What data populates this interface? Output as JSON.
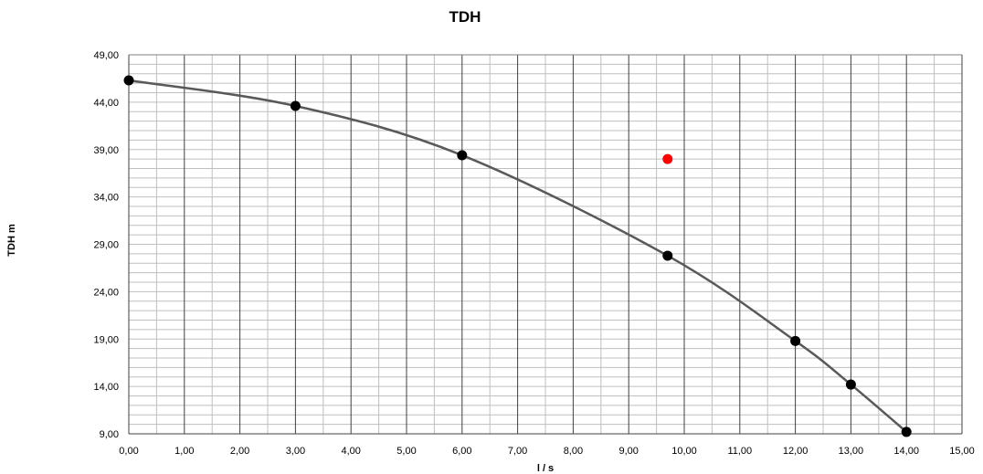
{
  "chart_data": {
    "type": "scatter",
    "title": "TDH",
    "xlabel": "l / s",
    "ylabel": "TDH m",
    "xlim": [
      0,
      15
    ],
    "ylim": [
      9,
      49
    ],
    "grid": true,
    "x_ticks": [
      "0,00",
      "1,00",
      "2,00",
      "3,00",
      "4,00",
      "5,00",
      "6,00",
      "7,00",
      "8,00",
      "9,00",
      "10,00",
      "11,00",
      "12,00",
      "13,00",
      "14,00",
      "15,00"
    ],
    "y_ticks": [
      "9,00",
      "14,00",
      "19,00",
      "24,00",
      "29,00",
      "34,00",
      "39,00",
      "44,00",
      "49,00"
    ],
    "series": [
      {
        "type": "line",
        "color": "#595959",
        "marker_color": "#000000",
        "x": [
          0,
          3,
          6,
          9.7,
          12,
          13,
          14
        ],
        "y": [
          46.3,
          43.6,
          38.4,
          27.8,
          18.8,
          14.2,
          9.2
        ]
      },
      {
        "type": "scatter",
        "color": "#ff0000",
        "x": [
          9.7
        ],
        "y": [
          38.0
        ]
      }
    ]
  }
}
